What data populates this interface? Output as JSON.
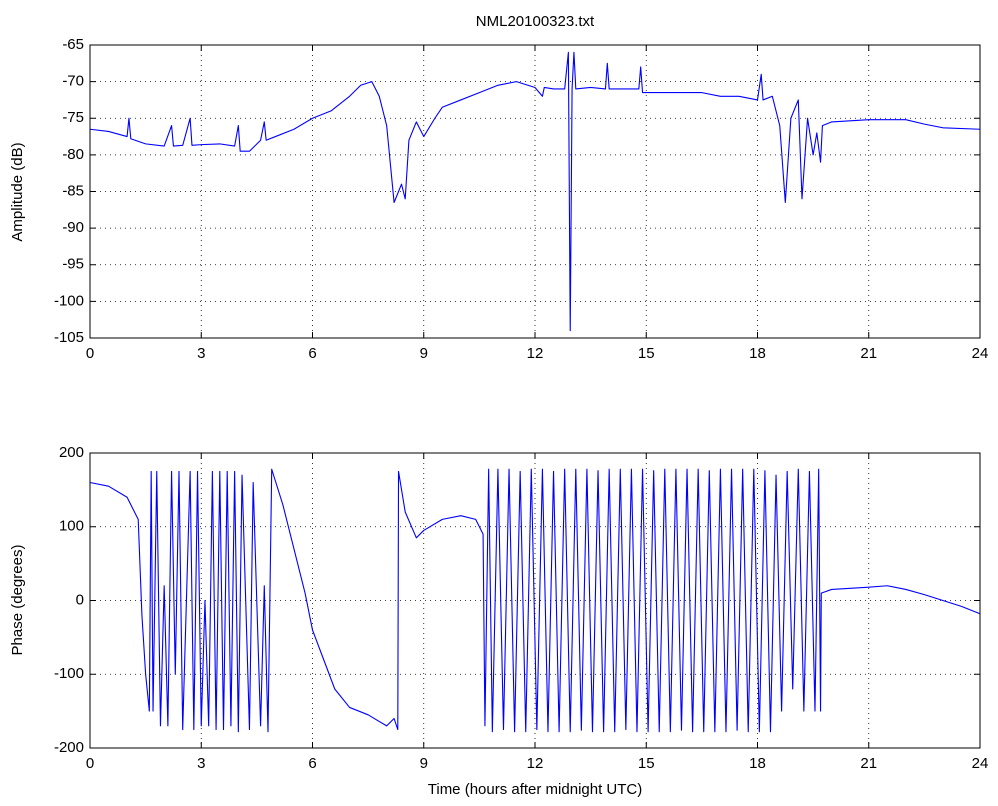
{
  "chart_data": [
    {
      "type": "line",
      "title": "NML20100323.txt",
      "ylabel": "Amplitude (dB)",
      "xlim": [
        0,
        24
      ],
      "xticks": [
        0,
        3,
        6,
        9,
        12,
        15,
        18,
        21,
        24
      ],
      "ylim": [
        -105,
        -65
      ],
      "yticks": [
        -105,
        -100,
        -95,
        -90,
        -85,
        -80,
        -75,
        -70,
        -65
      ],
      "grid": true,
      "x": [
        0,
        0.5,
        1,
        1.05,
        1.1,
        1.5,
        2,
        2.2,
        2.25,
        2.5,
        2.7,
        2.75,
        3,
        3.5,
        3.9,
        4,
        4.05,
        4.3,
        4.6,
        4.7,
        4.75,
        5,
        5.5,
        6,
        6.5,
        7,
        7.3,
        7.6,
        7.8,
        8,
        8.2,
        8.4,
        8.5,
        8.6,
        8.8,
        9,
        9.3,
        9.5,
        10,
        10.5,
        11,
        11.5,
        12,
        12.2,
        12.25,
        12.5,
        12.8,
        12.9,
        12.95,
        13,
        13.05,
        13.1,
        13.5,
        13.9,
        13.95,
        14,
        14.5,
        14.8,
        14.85,
        14.9,
        15.5,
        16,
        16.5,
        17,
        17.5,
        18,
        18.1,
        18.15,
        18.4,
        18.6,
        18.75,
        18.9,
        19.1,
        19.2,
        19.35,
        19.5,
        19.6,
        19.7,
        19.75,
        20,
        21,
        22,
        22.5,
        23,
        24
      ],
      "series": [
        {
          "color": "#0000ff",
          "values": [
            -76.5,
            -76.8,
            -77.5,
            -75,
            -77.8,
            -78.5,
            -78.8,
            -76,
            -78.8,
            -78.7,
            -75,
            -78.7,
            -78.6,
            -78.5,
            -78.8,
            -76,
            -79.5,
            -79.5,
            -78,
            -75.5,
            -78,
            -77.5,
            -76.5,
            -75,
            -74,
            -72,
            -70.5,
            -70,
            -72,
            -76,
            -86.5,
            -84,
            -86,
            -78,
            -75.5,
            -77.5,
            -75,
            -73.5,
            -72.5,
            -71.5,
            -70.5,
            -70,
            -70.8,
            -72,
            -70.8,
            -71,
            -71,
            -66,
            -104,
            -71,
            -66,
            -71,
            -70.8,
            -71,
            -67.5,
            -71,
            -71,
            -71,
            -68,
            -71.5,
            -71.5,
            -71.5,
            -71.5,
            -72,
            -72,
            -72.5,
            -69,
            -72.5,
            -72,
            -76,
            -86.5,
            -75,
            -72.5,
            -86,
            -75,
            -80,
            -77,
            -81,
            -76,
            -75.5,
            -75.2,
            -75.2,
            -75.8,
            -76.3,
            -76.5
          ]
        }
      ]
    },
    {
      "type": "line",
      "xlabel": "Time (hours after midnight UTC)",
      "ylabel": "Phase (degrees)",
      "xlim": [
        0,
        24
      ],
      "xticks": [
        0,
        3,
        6,
        9,
        12,
        15,
        18,
        21,
        24
      ],
      "ylim": [
        -200,
        200
      ],
      "yticks": [
        -200,
        -100,
        0,
        100,
        200
      ],
      "grid": true,
      "x": [
        0,
        0.5,
        1,
        1.3,
        1.4,
        1.5,
        1.6,
        1.65,
        1.7,
        1.8,
        1.9,
        2.0,
        2.1,
        2.2,
        2.3,
        2.4,
        2.5,
        2.7,
        2.8,
        2.9,
        3.0,
        3.1,
        3.2,
        3.3,
        3.4,
        3.5,
        3.6,
        3.7,
        3.8,
        3.9,
        4.0,
        4.1,
        4.3,
        4.4,
        4.6,
        4.7,
        4.8,
        4.9,
        5.2,
        5.5,
        5.8,
        6.0,
        6.3,
        6.6,
        7.0,
        7.5,
        8.0,
        8.2,
        8.3,
        8.32,
        8.5,
        8.8,
        9.0,
        9.5,
        10,
        10.4,
        10.6,
        10.65,
        10.75,
        10.85,
        11.0,
        11.15,
        11.3,
        11.45,
        11.6,
        11.75,
        11.9,
        12.05,
        12.2,
        12.35,
        12.5,
        12.65,
        12.8,
        12.95,
        13.1,
        13.25,
        13.4,
        13.55,
        13.7,
        13.85,
        14.0,
        14.15,
        14.3,
        14.45,
        14.6,
        14.75,
        14.9,
        15.05,
        15.2,
        15.35,
        15.5,
        15.65,
        15.8,
        15.95,
        16.1,
        16.25,
        16.4,
        16.55,
        16.7,
        16.85,
        17.0,
        17.15,
        17.3,
        17.45,
        17.6,
        17.75,
        17.9,
        18.05,
        18.2,
        18.35,
        18.5,
        18.65,
        18.8,
        18.95,
        19.1,
        19.25,
        19.4,
        19.55,
        19.65,
        19.7,
        19.72,
        20,
        21,
        21.5,
        22,
        22.5,
        23,
        23.5,
        24
      ],
      "series": [
        {
          "color": "#0000ff",
          "values": [
            160,
            155,
            140,
            110,
            -20,
            -100,
            -150,
            175,
            -150,
            175,
            -170,
            20,
            -170,
            175,
            -100,
            175,
            -175,
            175,
            -175,
            175,
            -170,
            0,
            -170,
            175,
            -175,
            175,
            -175,
            175,
            -170,
            175,
            -178,
            170,
            -175,
            160,
            -170,
            20,
            -178,
            178,
            130,
            70,
            10,
            -40,
            -80,
            -120,
            -145,
            -155,
            -170,
            -160,
            -175,
            175,
            120,
            85,
            95,
            110,
            115,
            110,
            90,
            -170,
            178,
            -178,
            178,
            -175,
            178,
            -178,
            175,
            -178,
            178,
            -175,
            178,
            -178,
            175,
            -178,
            178,
            -178,
            178,
            -176,
            178,
            -178,
            176,
            -178,
            178,
            -178,
            178,
            -175,
            178,
            -178,
            178,
            -178,
            176,
            -178,
            178,
            -178,
            178,
            -176,
            178,
            -178,
            178,
            -178,
            176,
            -178,
            178,
            -178,
            178,
            -176,
            178,
            -178,
            178,
            -178,
            176,
            -178,
            170,
            -150,
            175,
            -120,
            178,
            -150,
            175,
            -150,
            178,
            -150,
            10,
            15,
            18,
            20,
            15,
            8,
            0,
            -8,
            -18
          ]
        }
      ]
    }
  ]
}
